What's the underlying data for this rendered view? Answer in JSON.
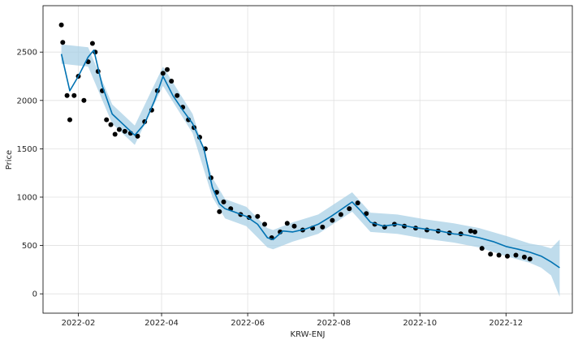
{
  "chart_data": {
    "type": "line",
    "title": "",
    "xlabel": "KRW-ENJ",
    "ylabel": "Price",
    "grid": true,
    "xlim": [
      "2022-01-07",
      "2023-01-17"
    ],
    "ylim": [
      -200,
      2980
    ],
    "x_ticks": [
      "2022-02",
      "2022-04",
      "2022-06",
      "2022-08",
      "2022-10",
      "2022-12"
    ],
    "y_ticks": [
      0,
      500,
      1000,
      1500,
      2000,
      2500
    ],
    "colors": {
      "forecast": "#0072B2",
      "interval": "#a9d0e6",
      "observed": "#000000"
    },
    "series": [
      {
        "role": "forecast",
        "x": [
          "2022-01-20",
          "2022-01-26",
          "2022-02-01",
          "2022-02-08",
          "2022-02-12",
          "2022-02-18",
          "2022-02-25",
          "2022-03-05",
          "2022-03-13",
          "2022-03-20",
          "2022-03-27",
          "2022-04-02",
          "2022-04-09",
          "2022-04-16",
          "2022-04-23",
          "2022-05-01",
          "2022-05-07",
          "2022-05-12",
          "2022-05-16",
          "2022-05-22",
          "2022-05-31",
          "2022-06-08",
          "2022-06-15",
          "2022-06-19",
          "2022-06-26",
          "2022-07-03",
          "2022-07-12",
          "2022-07-21",
          "2022-07-30",
          "2022-08-08",
          "2022-08-14",
          "2022-08-20",
          "2022-08-27",
          "2022-09-05",
          "2022-09-15",
          "2022-09-25",
          "2022-10-05",
          "2022-10-15",
          "2022-10-25",
          "2022-11-02",
          "2022-11-12",
          "2022-11-22",
          "2022-12-01",
          "2022-12-10",
          "2022-12-18",
          "2022-12-26",
          "2023-01-02",
          "2023-01-08"
        ],
        "y": [
          2480,
          2100,
          2250,
          2450,
          2520,
          2150,
          1860,
          1750,
          1640,
          1760,
          2000,
          2250,
          2050,
          1900,
          1760,
          1500,
          1100,
          930,
          880,
          850,
          800,
          720,
          580,
          560,
          650,
          640,
          670,
          720,
          800,
          890,
          950,
          860,
          740,
          700,
          720,
          690,
          670,
          650,
          620,
          610,
          580,
          540,
          490,
          460,
          430,
          390,
          330,
          270
        ]
      },
      {
        "role": "observed",
        "x": [
          "2022-01-20",
          "2022-01-21",
          "2022-01-24",
          "2022-01-26",
          "2022-01-29",
          "2022-02-01",
          "2022-02-05",
          "2022-02-08",
          "2022-02-11",
          "2022-02-13",
          "2022-02-15",
          "2022-02-18",
          "2022-02-21",
          "2022-02-24",
          "2022-02-27",
          "2022-03-02",
          "2022-03-06",
          "2022-03-10",
          "2022-03-15",
          "2022-03-20",
          "2022-03-25",
          "2022-03-29",
          "2022-04-02",
          "2022-04-05",
          "2022-04-08",
          "2022-04-12",
          "2022-04-16",
          "2022-04-20",
          "2022-04-24",
          "2022-04-28",
          "2022-05-02",
          "2022-05-06",
          "2022-05-10",
          "2022-05-12",
          "2022-05-15",
          "2022-05-20",
          "2022-05-27",
          "2022-06-02",
          "2022-06-08",
          "2022-06-13",
          "2022-06-18",
          "2022-06-24",
          "2022-06-29",
          "2022-07-04",
          "2022-07-10",
          "2022-07-17",
          "2022-07-24",
          "2022-07-31",
          "2022-08-06",
          "2022-08-12",
          "2022-08-18",
          "2022-08-24",
          "2022-08-30",
          "2022-09-06",
          "2022-09-13",
          "2022-09-20",
          "2022-09-28",
          "2022-10-06",
          "2022-10-14",
          "2022-10-22",
          "2022-10-30",
          "2022-11-06",
          "2022-11-09",
          "2022-11-14",
          "2022-11-20",
          "2022-11-26",
          "2022-12-02",
          "2022-12-08",
          "2022-12-14",
          "2022-12-18"
        ],
        "y": [
          2780,
          2600,
          2050,
          1800,
          2050,
          2250,
          2000,
          2400,
          2590,
          2500,
          2300,
          2100,
          1800,
          1750,
          1650,
          1700,
          1680,
          1660,
          1630,
          1780,
          1900,
          2100,
          2280,
          2320,
          2200,
          2050,
          1930,
          1800,
          1720,
          1620,
          1500,
          1200,
          1050,
          850,
          950,
          880,
          820,
          790,
          800,
          720,
          580,
          640,
          730,
          700,
          660,
          680,
          690,
          760,
          820,
          880,
          940,
          830,
          720,
          690,
          720,
          700,
          680,
          660,
          650,
          630,
          620,
          650,
          640,
          470,
          410,
          400,
          390,
          400,
          380,
          360
        ]
      }
    ],
    "interval": {
      "x": [
        "2022-01-20",
        "2022-02-08",
        "2022-02-25",
        "2022-03-13",
        "2022-04-02",
        "2022-04-23",
        "2022-05-07",
        "2022-05-16",
        "2022-05-31",
        "2022-06-15",
        "2022-06-19",
        "2022-07-03",
        "2022-07-21",
        "2022-08-14",
        "2022-08-27",
        "2022-09-15",
        "2022-10-05",
        "2022-10-25",
        "2022-11-12",
        "2022-12-01",
        "2022-12-18",
        "2022-12-26",
        "2023-01-02",
        "2023-01-08"
      ],
      "upper": [
        2580,
        2550,
        1960,
        1740,
        2350,
        1860,
        1200,
        980,
        900,
        680,
        660,
        740,
        820,
        1050,
        840,
        820,
        770,
        730,
        680,
        600,
        520,
        500,
        470,
        560
      ],
      "lower": [
        2380,
        2350,
        1760,
        1540,
        2150,
        1660,
        1000,
        780,
        700,
        480,
        460,
        540,
        620,
        850,
        640,
        620,
        570,
        530,
        480,
        390,
        320,
        270,
        190,
        -30
      ]
    }
  }
}
